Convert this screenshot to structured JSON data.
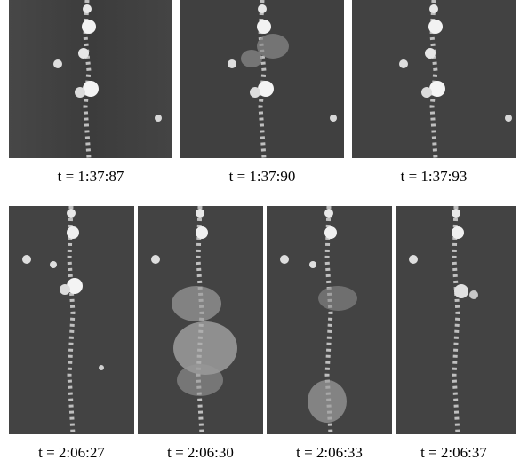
{
  "figure": {
    "top_row": {
      "frames": [
        {
          "caption": "t = 1:37:87"
        },
        {
          "caption": "t = 1:37:90"
        },
        {
          "caption": "t = 1:37:93"
        }
      ]
    },
    "bottom_row": {
      "frames": [
        {
          "caption": "t = 2:06:27"
        },
        {
          "caption": "t = 2:06:30"
        },
        {
          "caption": "t = 2:06:33"
        },
        {
          "caption": "t = 2:06:37"
        }
      ]
    }
  }
}
